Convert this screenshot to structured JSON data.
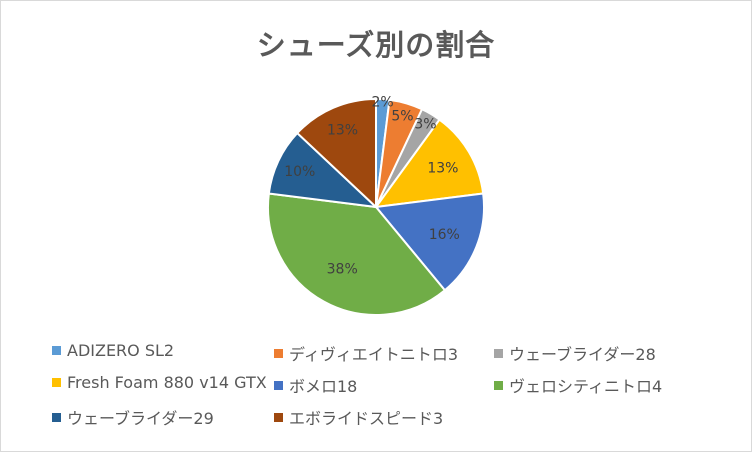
{
  "chart_data": {
    "type": "pie",
    "title": "シューズ別の割合",
    "labels": [
      "ADIZERO SL2",
      "ディヴィエイトニトロ3",
      "ウェーブライダー28",
      "Fresh Foam 880 v14 GTX",
      "ボメロ18",
      "ヴェロシティニトロ4",
      "ウェーブライダー29",
      "エボライドスピード3"
    ],
    "values": [
      2,
      5,
      3,
      13,
      16,
      38,
      10,
      13
    ],
    "value_labels": [
      "2%",
      "5%",
      "3%",
      "13%",
      "16%",
      "38%",
      "10%",
      "13%"
    ],
    "colors": [
      "#5B9BD5",
      "#ED7D31",
      "#A5A5A5",
      "#FFC000",
      "#4472C4",
      "#70AD47",
      "#255E91",
      "#9E480E"
    ],
    "legend_position": "bottom"
  }
}
